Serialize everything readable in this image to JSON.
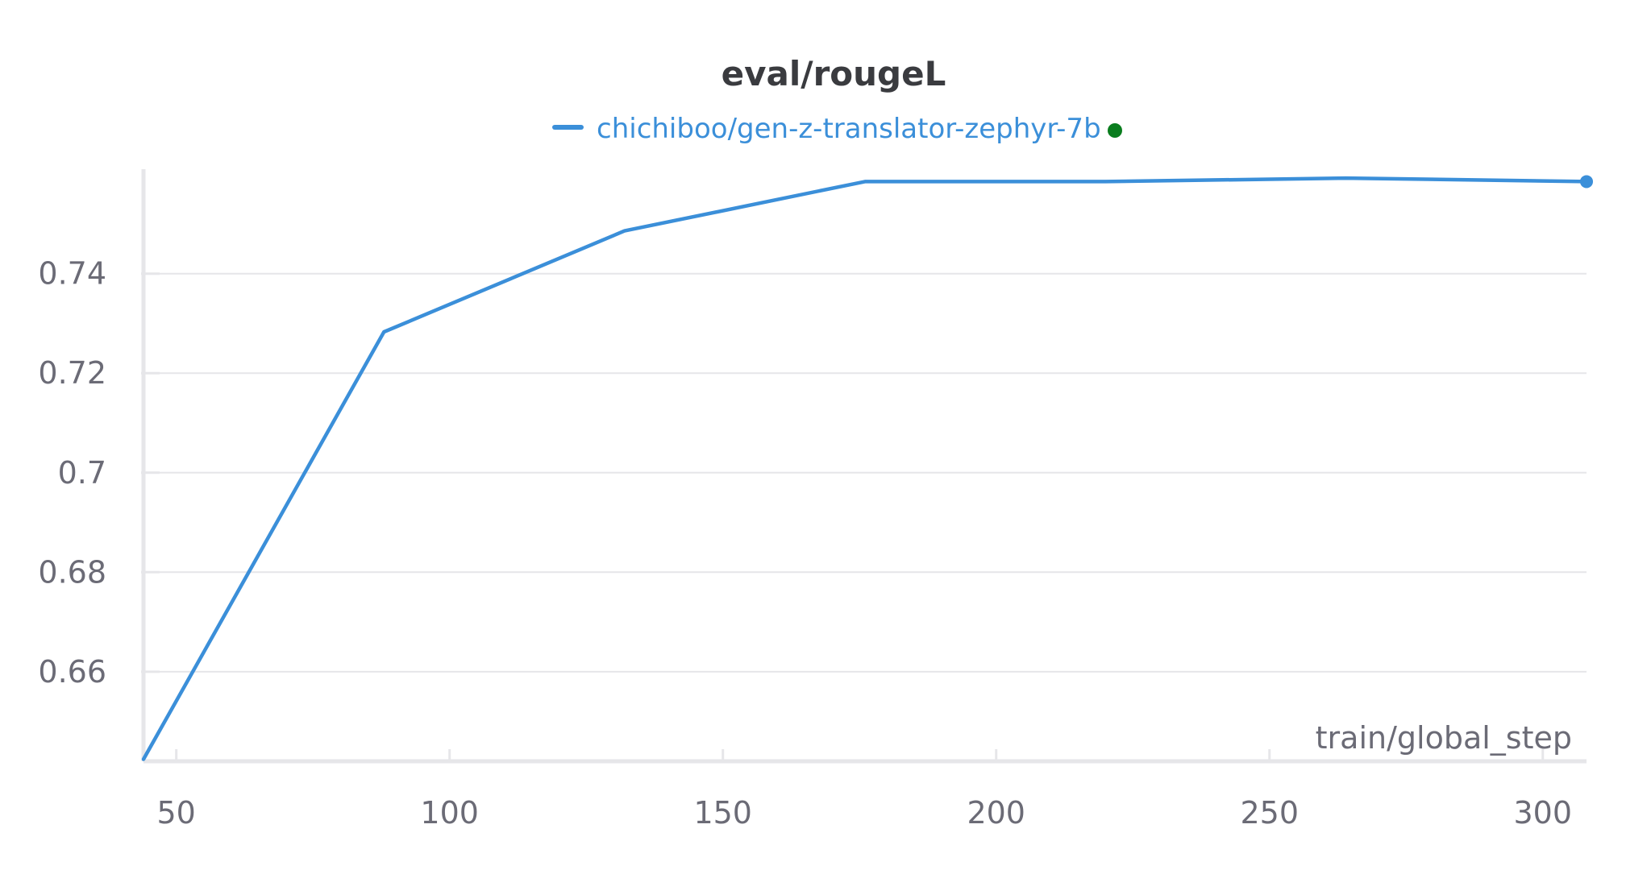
{
  "chart_data": {
    "type": "line",
    "title": "eval/rougeL",
    "xlabel": "train/global_step",
    "ylabel": "",
    "xlim": [
      44,
      308
    ],
    "ylim": [
      0.642,
      0.761
    ],
    "x_ticks": [
      50,
      100,
      150,
      200,
      250,
      300
    ],
    "x_tick_labels": [
      "50",
      "100",
      "150",
      "200",
      "250",
      "300"
    ],
    "y_ticks": [
      0.66,
      0.68,
      0.7,
      0.72,
      0.74
    ],
    "y_tick_labels": [
      "0.66",
      "0.68",
      "0.7",
      "0.72",
      "0.74"
    ],
    "grid": true,
    "legend_position": "top",
    "series": [
      {
        "name": "chichiboo/gen-z-translator-zephyr-7b",
        "color": "#3b8fd9",
        "status_color": "#0a7d1e",
        "x": [
          44,
          88,
          132,
          176,
          220,
          264,
          308
        ],
        "y": [
          0.6424,
          0.7283,
          0.7486,
          0.7585,
          0.7585,
          0.7592,
          0.7585
        ]
      }
    ]
  }
}
